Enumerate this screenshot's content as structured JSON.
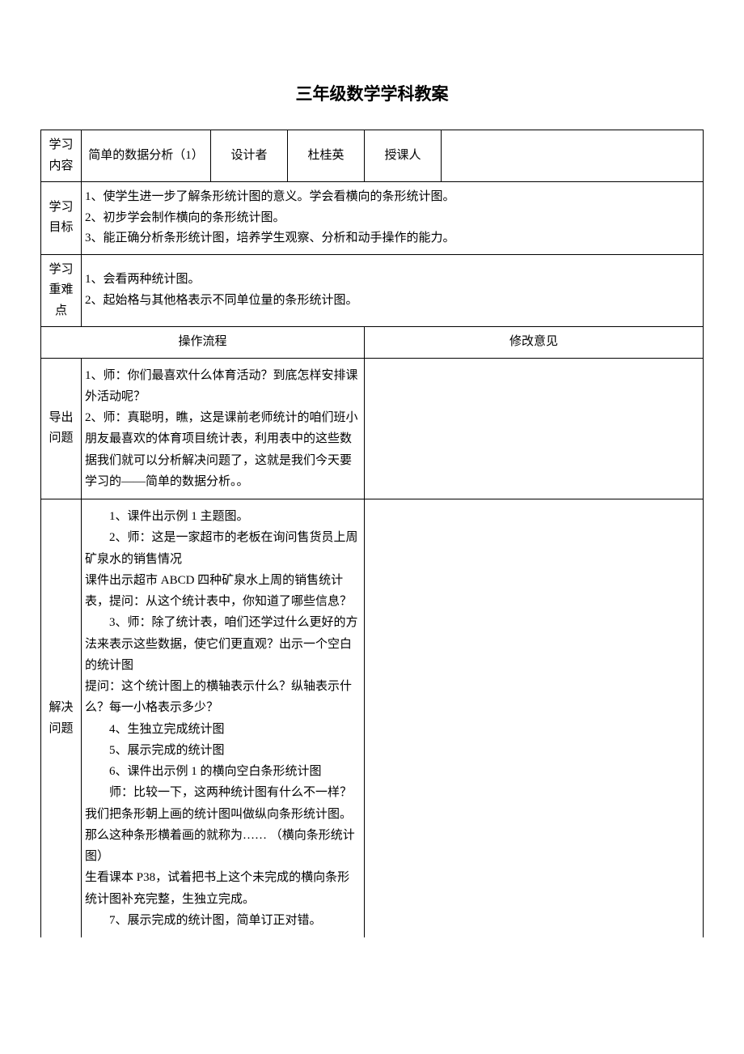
{
  "title": "三年级数学学科教案",
  "row1": {
    "label1": "学习内容",
    "content": "简单的数据分析（1）",
    "label2": "设计者",
    "designer": "杜桂英",
    "label3": "授课人",
    "teacher": ""
  },
  "row2": {
    "label": "学习目标",
    "line1": "1、使学生进一步了解条形统计图的意义。学会看横向的条形统计图。",
    "line2": "2、初步学会制作横向的条形统计图。",
    "line3": "3、能正确分析条形统计图，培养学生观察、分析和动手操作的能力。"
  },
  "row3": {
    "label": "学习重难点",
    "line1": "1、会看两种统计图。",
    "line2": "2、起始格与其他格表示不同单位量的条形统计图。"
  },
  "headers": {
    "flow": "操作流程",
    "suggestion": "修改意见"
  },
  "section1": {
    "label": "导出问题",
    "p1": "1、师：你们最喜欢什么体育活动？到底怎样安排课外活动呢？",
    "p2": "2、师：真聪明，瞧，这是课前老师统计的咱们班小朋友最喜欢的体育项目统计表，利用表中的这些数据我们就可以分析解决问题了，这就是我们今天要学习的——简单的数据分析。。"
  },
  "section2": {
    "label": "解决问题",
    "p1": "1、课件出示例 1 主题图。",
    "p2": "2、师：这是一家超市的老板在询问售货员上周矿泉水的销售情况",
    "p3": "课件出示超市 ABCD 四种矿泉水上周的销售统计表，提问：从这个统计表中，你知道了哪些信息？",
    "p4": "3、师：除了统计表，咱们还学过什么更好的方法来表示这些数据，使它们更直观？出示一个空白的统计图",
    "p5": "提问：这个统计图上的横轴表示什么？纵轴表示什么？每一小格表示多少？",
    "p6": "4、生独立完成统计图",
    "p7": "5、展示完成的统计图",
    "p8": "6、课件出示例 1 的横向空白条形统计图",
    "p9": "师：比较一下，这两种统计图有什么不一样？我们把条形朝上画的统计图叫做纵向条形统计图。那么这种条形横着画的就称为…… （横向条形统计图）",
    "p10": "生看课本 P38，试着把书上这个未完成的横向条形统计图补充完整，生独立完成。",
    "p11": "7、展示完成的统计图，简单订正对错。"
  }
}
